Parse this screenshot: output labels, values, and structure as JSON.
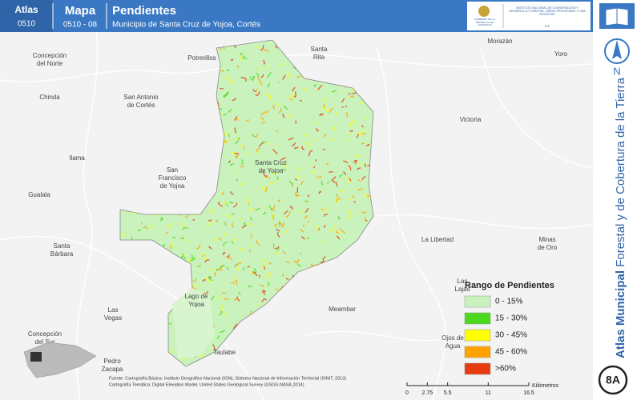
{
  "header": {
    "atlas_label": "Atlas",
    "atlas_code": "0510",
    "map_label": "Mapa",
    "map_code": "0510 - 08",
    "title": "Pendientes",
    "subtitle": "Municipio de Santa Cruz de Yojoa, Cortés",
    "logo_left": "GOBIERNO DE LA REPÚBLICA DE HONDURAS",
    "logo_right": "INSTITUTO NACIONAL DE CONSERVACIÓN Y DESARROLLO FORESTAL, ÁREAS PROTEGIDAS Y VIDA SILVESTRE",
    "logo_abbr": "ICF"
  },
  "sidebar": {
    "north": "N",
    "title_bold": "Atlas Municipal",
    "title_rest": "Forestal y de Cobertura de la Tierra",
    "page": "8A"
  },
  "places": [
    [
      "Concepción",
      "del Norte"
    ],
    [
      "Potrerillos"
    ],
    [
      "Santa",
      "Rita"
    ],
    [
      "Morazán"
    ],
    [
      "Yoro"
    ],
    [
      "Chinda"
    ],
    [
      "San Antonio",
      "de Cortés"
    ],
    [
      "Victoria"
    ],
    [
      "Ilama"
    ],
    [
      "San",
      "Francisco",
      "de Yojoa"
    ],
    [
      "Santa Cruz",
      "de Yojoa"
    ],
    [
      "Gualala"
    ],
    [
      "Santa",
      "Bárbara"
    ],
    [
      "La Libertad"
    ],
    [
      "Minas",
      "de Oro"
    ],
    [
      "Las",
      "Lajas"
    ],
    [
      "Las",
      "Vegas"
    ],
    [
      "Lago de",
      "Yojoa"
    ],
    [
      "Meambar"
    ],
    [
      "Ojos de",
      "Agua"
    ],
    [
      "Concepción",
      "del Sur"
    ],
    [
      "Pedro",
      "Zacapa"
    ],
    [
      "Taulabe"
    ]
  ],
  "legend": {
    "title": "Rango de Pendientes",
    "items": [
      {
        "label": "0 - 15%",
        "color": "#c9f2bc"
      },
      {
        "label": "15 - 30%",
        "color": "#4cd81e"
      },
      {
        "label": "30 - 45%",
        "color": "#ffff00"
      },
      {
        "label": "45 - 60%",
        "color": "#ffa200"
      },
      {
        "label": ">60%",
        "color": "#e83b10"
      }
    ]
  },
  "scale": {
    "ticks": [
      0,
      2.75,
      5.5,
      11,
      16.5
    ],
    "unit": "Kilómetros"
  },
  "source": {
    "lines": [
      "Fuente: Cartografía Básica: Instituto Geográfico Nacional (IGN), Sistema Nacional de Información Territorial (SINIT, 2013)",
      "Cartografía Temática: Digital Elevation Model, United States Geological Survey (USGS-NASA,2014)"
    ]
  }
}
